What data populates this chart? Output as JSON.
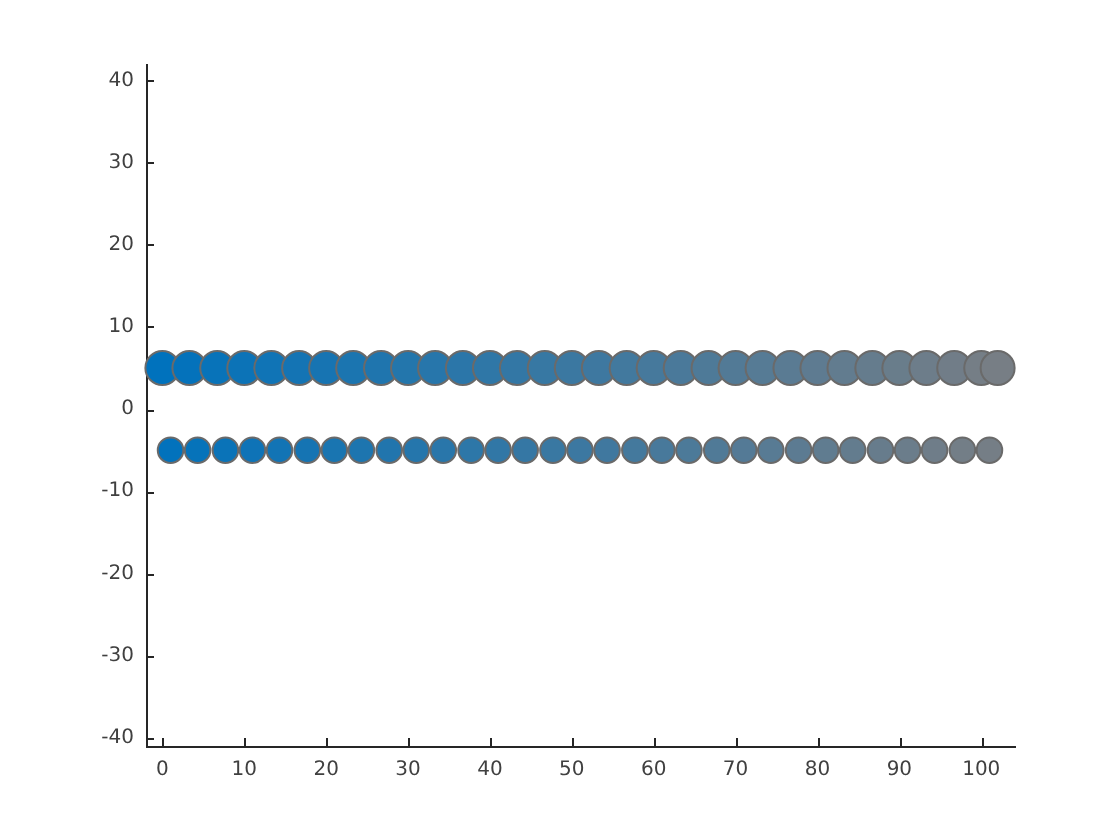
{
  "chart_data": {
    "type": "scatter",
    "marker": "circle",
    "series": [
      {
        "x": [
          0,
          3.3,
          6.7,
          10,
          13.3,
          16.7,
          20,
          23.3,
          26.7,
          30,
          33.3,
          36.7,
          40,
          43.3,
          46.7,
          50,
          53.3,
          56.7,
          60,
          63.3,
          66.7,
          70,
          73.3,
          76.7,
          80,
          83.3,
          86.7,
          90,
          93.3,
          96.7,
          100,
          102
        ],
        "values": [
          5,
          5,
          5,
          5,
          5,
          5,
          5,
          5,
          5,
          5,
          5,
          5,
          5,
          5,
          5,
          5,
          5,
          5,
          5,
          5,
          5,
          5,
          5,
          5,
          5,
          5,
          5,
          5,
          5,
          5,
          5,
          5
        ],
        "colors": [
          "#0072bd",
          "#0472bb",
          "#0873b9",
          "#0c73b7",
          "#1074b6",
          "#1474b4",
          "#1774b2",
          "#1b75b0",
          "#1f75ae",
          "#2376ac",
          "#2776ab",
          "#2b76a9",
          "#2f77a7",
          "#3377a5",
          "#3778a3",
          "#3b78a1",
          "#3e78a0",
          "#42799e",
          "#46799c",
          "#4a799a",
          "#4e7a98",
          "#527a96",
          "#567b95",
          "#5a7b93",
          "#5e7b91",
          "#627c8f",
          "#657c8d",
          "#697d8b",
          "#6d7d8a",
          "#717d88",
          "#757e86",
          "#777e85"
        ]
      },
      {
        "x": [
          1,
          4.3,
          7.7,
          11,
          14.3,
          17.7,
          21,
          24.3,
          27.7,
          31,
          34.3,
          37.7,
          41,
          44.3,
          47.7,
          51,
          54.3,
          57.7,
          61,
          64.3,
          67.7,
          71,
          74.3,
          77.7,
          81,
          84.3,
          87.7,
          91,
          94.3,
          97.7,
          101
        ],
        "values": [
          -5,
          -5,
          -5,
          -5,
          -5,
          -5,
          -5,
          -5,
          -5,
          -5,
          -5,
          -5,
          -5,
          -5,
          -5,
          -5,
          -5,
          -5,
          -5,
          -5,
          -5,
          -5,
          -5,
          -5,
          -5,
          -5,
          -5,
          -5,
          -5,
          -5,
          -5
        ],
        "colors": [
          "#0272bc",
          "#0673ba",
          "#0a73b8",
          "#0e73b7",
          "#1274b5",
          "#1574b3",
          "#1975b1",
          "#1d75af",
          "#2175ad",
          "#2576ac",
          "#2976aa",
          "#2d77a8",
          "#3177a6",
          "#3577a4",
          "#3978a2",
          "#3c78a1",
          "#40789f",
          "#44799d",
          "#48799b",
          "#4c7a99",
          "#507a97",
          "#547a96",
          "#587b94",
          "#5c7b92",
          "#607c90",
          "#637c8e",
          "#677c8c",
          "#6b7d8b",
          "#6f7d89",
          "#737e87",
          "#757e86"
        ]
      }
    ],
    "xlim": [
      -2,
      104
    ],
    "ylim": [
      -41,
      42
    ],
    "xticks": [
      0,
      10,
      20,
      30,
      40,
      50,
      60,
      70,
      80,
      90,
      100
    ],
    "yticks": [
      -40,
      -30,
      -20,
      -10,
      0,
      10,
      20,
      30,
      40
    ]
  }
}
